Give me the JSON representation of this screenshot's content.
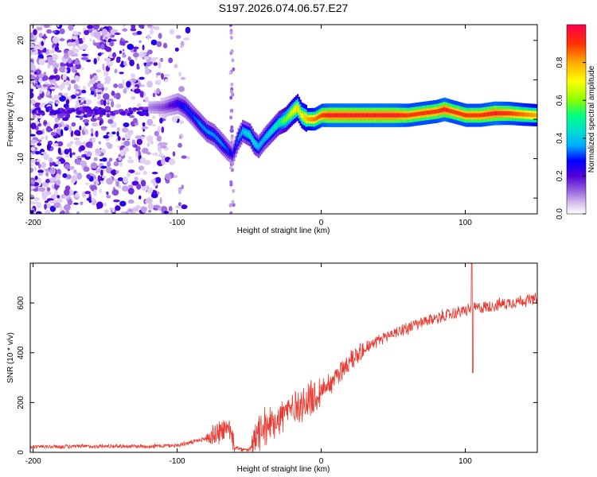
{
  "title": "S197.2026.074.06.57.E27",
  "chart_data": [
    {
      "type": "heatmap",
      "name": "spectrogram",
      "xlabel": "Height of straight line (km)",
      "ylabel": "Frequency (Hz)",
      "xlim": [
        -202,
        150
      ],
      "ylim": [
        -24,
        24
      ],
      "xticks": [
        -200,
        -100,
        0,
        100
      ],
      "yticks": [
        -20,
        -10,
        0,
        10,
        20
      ],
      "colorbar": {
        "label": "Normalized spectral amplitude",
        "range": [
          0,
          1
        ],
        "ticks": [
          "0.0",
          "0.2",
          "0.4",
          "0.6",
          "0.8"
        ],
        "colors": [
          "#ffffff",
          "#dcc8f0",
          "#9966e0",
          "#5500d8",
          "#0000ff",
          "#00aaff",
          "#00e0d0",
          "#00ff80",
          "#88ff00",
          "#ffff00",
          "#ffaa00",
          "#ff3000",
          "#ff0050"
        ]
      },
      "ridge": {
        "x": [
          -120,
          -110,
          -100,
          -95,
          -90,
          -85,
          -80,
          -75,
          -70,
          -65,
          -62,
          -58,
          -55,
          -50,
          -47,
          -44,
          -40,
          -35,
          -30,
          -25,
          -20,
          -17,
          -14,
          -10,
          -5,
          0,
          5,
          10,
          20,
          30,
          40,
          50,
          60,
          70,
          80,
          85,
          90,
          95,
          100,
          110,
          120,
          130,
          140,
          150
        ],
        "y": [
          3,
          3,
          4,
          3,
          1,
          -1,
          -3,
          -4,
          -6,
          -8,
          -9,
          -5,
          -3,
          -4,
          -6,
          -7,
          -5,
          -3,
          -1,
          0,
          2,
          3,
          1,
          0,
          0,
          1,
          1,
          1,
          1,
          1,
          1,
          1,
          1,
          1.5,
          2,
          2.5,
          2,
          1.5,
          1,
          1,
          1.5,
          1.5,
          1.2,
          1
        ],
        "amp": [
          0.1,
          0.15,
          0.25,
          0.3,
          0.3,
          0.35,
          0.35,
          0.35,
          0.35,
          0.3,
          0.25,
          0.35,
          0.4,
          0.45,
          0.45,
          0.4,
          0.4,
          0.45,
          0.5,
          0.6,
          0.7,
          0.75,
          0.7,
          0.8,
          0.85,
          0.9,
          0.95,
          0.95,
          0.95,
          0.95,
          0.95,
          0.95,
          0.9,
          0.9,
          0.9,
          0.95,
          0.9,
          0.9,
          0.9,
          0.9,
          0.95,
          0.9,
          0.85,
          0.8
        ]
      }
    },
    {
      "type": "line",
      "name": "snr",
      "xlabel": "Height of straight line (km)",
      "ylabel": "SNR (10 * v/v)",
      "xlim": [
        -202,
        150
      ],
      "ylim": [
        0,
        760
      ],
      "xticks": [
        -200,
        -100,
        0,
        100
      ],
      "yticks": [
        0,
        200,
        400,
        600
      ],
      "color": "#e83a30",
      "series": [
        {
          "name": "SNR",
          "x": [
            -202,
            -180,
            -160,
            -140,
            -120,
            -100,
            -90,
            -80,
            -75,
            -70,
            -65,
            -62,
            -60,
            -55,
            -50,
            -47,
            -45,
            -40,
            -35,
            -30,
            -25,
            -20,
            -15,
            -10,
            -5,
            0,
            10,
            20,
            30,
            40,
            50,
            60,
            70,
            80,
            90,
            100,
            104,
            106,
            110,
            120,
            130,
            140,
            150
          ],
          "y": [
            22,
            23,
            24,
            25,
            24,
            28,
            40,
            55,
            70,
            85,
            95,
            80,
            20,
            10,
            10,
            30,
            60,
            90,
            120,
            140,
            160,
            180,
            190,
            200,
            220,
            250,
            300,
            370,
            420,
            450,
            480,
            500,
            520,
            540,
            555,
            570,
            575,
            580,
            580,
            590,
            600,
            610,
            615
          ]
        }
      ]
    }
  ]
}
